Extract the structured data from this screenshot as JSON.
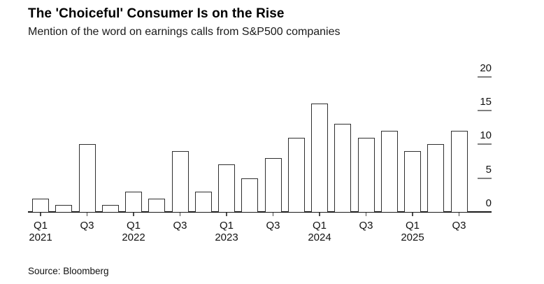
{
  "header": {
    "title": "The 'Choiceful' Consumer Is on the Rise",
    "subtitle": "Mention of the word on earnings calls from S&P500 companies"
  },
  "footer": {
    "source": "Source: Bloomberg"
  },
  "colors": {
    "background": "#ffffff",
    "bar_fill": "#ffffff",
    "bar_border": "#2f2f2f",
    "axis_line": "#1a1a1a",
    "tick_dash": "#808080",
    "text": "#111111"
  },
  "chart_data": {
    "type": "bar",
    "title": "The 'Choiceful' Consumer Is on the Rise",
    "subtitle": "Mention of the word on earnings calls from S&P500 companies",
    "xlabel": "",
    "ylabel": "",
    "categories": [
      "Q1 2021",
      "Q2 2021",
      "Q3 2021",
      "Q4 2021",
      "Q1 2022",
      "Q2 2022",
      "Q3 2022",
      "Q4 2022",
      "Q1 2023",
      "Q2 2023",
      "Q3 2023",
      "Q4 2023",
      "Q1 2024",
      "Q2 2024",
      "Q3 2024",
      "Q4 2024",
      "Q1 2025",
      "Q2 2025",
      "Q3 2025"
    ],
    "values": [
      2,
      1,
      10,
      1,
      3,
      2,
      9,
      3,
      7,
      5,
      8,
      11,
      16,
      13,
      11,
      12,
      9,
      10,
      12
    ],
    "ylim": [
      0,
      20
    ],
    "yticks": [
      0,
      5,
      10,
      15,
      20
    ],
    "y_axis_position": "right",
    "grid": false,
    "legend": false,
    "x_tick_labels": [
      {
        "quarter": "Q1",
        "year": "2021"
      },
      {
        "quarter": "Q3",
        "year": ""
      },
      {
        "quarter": "Q1",
        "year": "2022"
      },
      {
        "quarter": "Q3",
        "year": ""
      },
      {
        "quarter": "Q1",
        "year": "2023"
      },
      {
        "quarter": "Q3",
        "year": ""
      },
      {
        "quarter": "Q1",
        "year": "2024"
      },
      {
        "quarter": "Q3",
        "year": ""
      },
      {
        "quarter": "Q1",
        "year": "2025"
      },
      {
        "quarter": "Q3",
        "year": ""
      }
    ]
  }
}
